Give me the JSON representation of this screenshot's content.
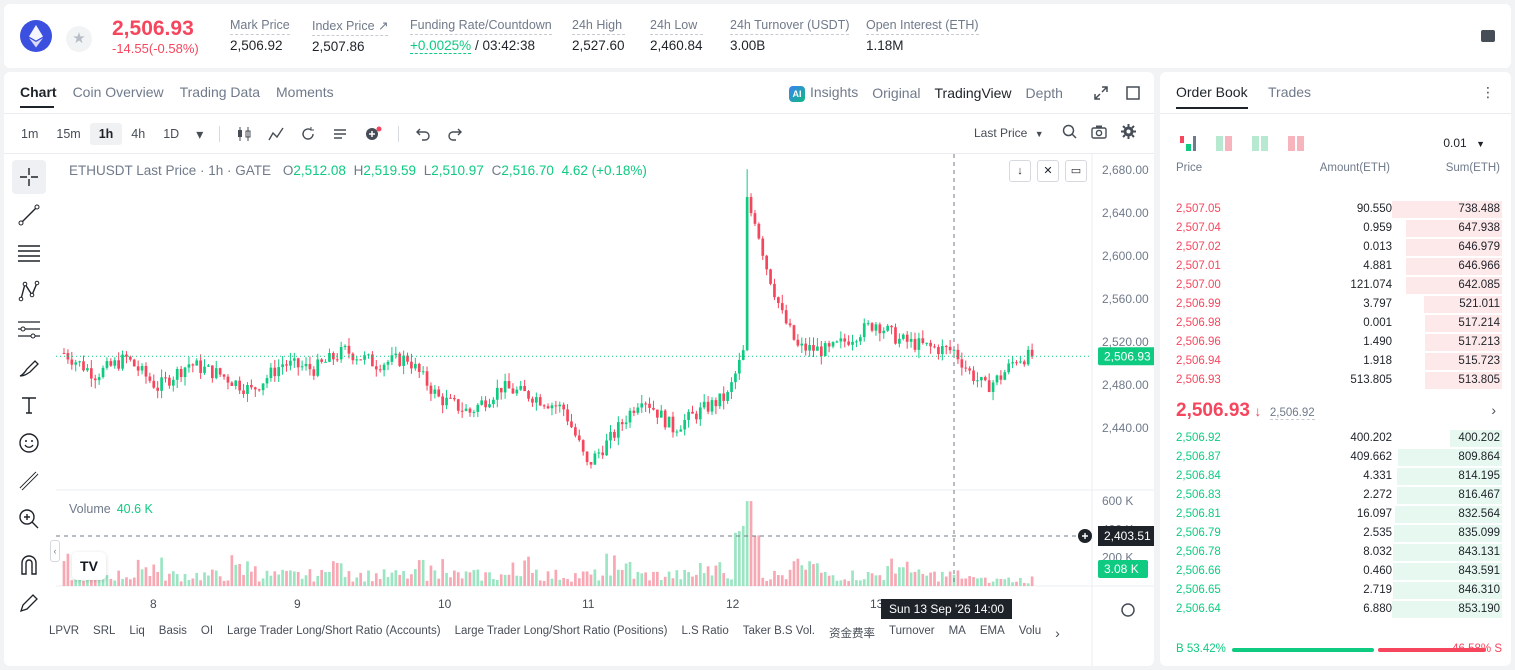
{
  "header": {
    "last_price": "2,506.93",
    "change": "-14.55(-0.58%)",
    "stats": [
      {
        "label": "Mark Price",
        "value": "2,506.92"
      },
      {
        "label": "Index Price ↗",
        "value": "2,507.86"
      },
      {
        "label": "Funding Rate/Countdown",
        "value": "+0.0025%",
        "value2": " / 03:42:38"
      },
      {
        "label": "24h High",
        "value": "2,527.60"
      },
      {
        "label": "24h Low",
        "value": "2,460.84"
      },
      {
        "label": "24h Turnover (USDT)",
        "value": "3.00B"
      },
      {
        "label": "Open Interest (ETH)",
        "value": "1.18M"
      }
    ]
  },
  "chart_tabs": [
    "Chart",
    "Coin Overview",
    "Trading Data",
    "Moments"
  ],
  "view_tabs": {
    "insights": "Insights",
    "original": "Original",
    "tradingview": "TradingView",
    "depth": "Depth"
  },
  "timeframes": [
    "1m",
    "15m",
    "1h",
    "4h",
    "1D"
  ],
  "active_timeframe": "1h",
  "price_type": "Last Price",
  "legend": {
    "symbol": "ETHUSDT Last Price · 1h · GATE",
    "o_label": "O",
    "o": "2,512.08",
    "h_label": "H",
    "h": "2,519.59",
    "l_label": "L",
    "l": "2,510.97",
    "c_label": "C",
    "c": "2,516.70",
    "chg": "4.62 (+0.18%)"
  },
  "volume_legend": {
    "label": "Volume",
    "value": "40.6 K"
  },
  "crosshair": {
    "price": "2,403.51",
    "time": "Sun 13 Sep '26   14:00"
  },
  "chart_data": {
    "type": "candlestick",
    "symbol": "ETHUSDT",
    "interval": "1h",
    "price_axis": [
      "2,680.00",
      "2,640.00",
      "2,600.00",
      "2,560.00",
      "2,520.00",
      "2,480.00",
      "2,440.00"
    ],
    "price_axis_values": [
      2680,
      2640,
      2600,
      2560,
      2520,
      2480,
      2440
    ],
    "ylim": [
      2390,
      2695
    ],
    "x_ticks": [
      "8",
      "9",
      "10",
      "11",
      "12",
      "13"
    ],
    "volume_axis": [
      "600 K",
      "400 K",
      "200 K"
    ],
    "volume_axis_values": [
      600000,
      400000,
      200000
    ],
    "last_price_label": "2,506.93",
    "last_price_value": 2506.93,
    "last_volume_label": "3.08 K",
    "anchors": [
      [
        0,
        2510
      ],
      [
        8,
        2490
      ],
      [
        16,
        2505
      ],
      [
        24,
        2478
      ],
      [
        32,
        2500
      ],
      [
        40,
        2490
      ],
      [
        48,
        2475
      ],
      [
        56,
        2500
      ],
      [
        64,
        2495
      ],
      [
        72,
        2512
      ],
      [
        80,
        2500
      ],
      [
        88,
        2505
      ],
      [
        96,
        2468
      ],
      [
        104,
        2455
      ],
      [
        112,
        2478
      ],
      [
        120,
        2470
      ],
      [
        128,
        2458
      ],
      [
        132,
        2425
      ],
      [
        134,
        2405
      ],
      [
        140,
        2430
      ],
      [
        148,
        2470
      ],
      [
        156,
        2440
      ],
      [
        164,
        2458
      ],
      [
        170,
        2470
      ],
      [
        174,
        2510
      ],
      [
        176,
        2650
      ],
      [
        180,
        2590
      ],
      [
        184,
        2545
      ],
      [
        188,
        2515
      ],
      [
        196,
        2512
      ],
      [
        204,
        2530
      ],
      [
        208,
        2538
      ],
      [
        214,
        2522
      ],
      [
        222,
        2515
      ],
      [
        228,
        2512
      ],
      [
        232,
        2492
      ],
      [
        236,
        2478
      ],
      [
        240,
        2488
      ],
      [
        244,
        2505
      ],
      [
        248,
        2507
      ]
    ],
    "volume_notes": "Volume bars in thousands; spike near day 12 open reached ~600 K"
  },
  "indicators": [
    "LPVR",
    "SRL",
    "Liq",
    "Basis",
    "OI",
    "Large Trader Long/Short Ratio (Accounts)",
    "Large Trader Long/Short Ratio (Positions)",
    "L.S Ratio",
    "Taker B.S Vol.",
    "资金费率",
    "Turnover",
    "MA",
    "EMA",
    "Volu"
  ],
  "orderbook": {
    "tabs": [
      "Order Book",
      "Trades"
    ],
    "precision": "0.01",
    "headers": {
      "price": "Price",
      "amount": "Amount(ETH)",
      "sum": "Sum(ETH)"
    },
    "asks": [
      {
        "price": "2,507.05",
        "amount": "90.550",
        "sum": "738.488",
        "depth": 1.0
      },
      {
        "price": "2,507.04",
        "amount": "0.959",
        "sum": "647.938",
        "depth": 0.877
      },
      {
        "price": "2,507.02",
        "amount": "0.013",
        "sum": "646.979",
        "depth": 0.876
      },
      {
        "price": "2,507.01",
        "amount": "4.881",
        "sum": "646.966",
        "depth": 0.876
      },
      {
        "price": "2,507.00",
        "amount": "121.074",
        "sum": "642.085",
        "depth": 0.869
      },
      {
        "price": "2,506.99",
        "amount": "3.797",
        "sum": "521.011",
        "depth": 0.706
      },
      {
        "price": "2,506.98",
        "amount": "0.001",
        "sum": "517.214",
        "depth": 0.7
      },
      {
        "price": "2,506.96",
        "amount": "1.490",
        "sum": "517.213",
        "depth": 0.7
      },
      {
        "price": "2,506.94",
        "amount": "1.918",
        "sum": "515.723",
        "depth": 0.698
      },
      {
        "price": "2,506.93",
        "amount": "513.805",
        "sum": "513.805",
        "depth": 0.696
      }
    ],
    "mid": {
      "price": "2,506.93",
      "arrow": "↓",
      "mark": "2,506.92"
    },
    "bids": [
      {
        "price": "2,506.92",
        "amount": "400.202",
        "sum": "400.202",
        "depth": 0.469
      },
      {
        "price": "2,506.87",
        "amount": "409.662",
        "sum": "809.864",
        "depth": 0.949
      },
      {
        "price": "2,506.84",
        "amount": "4.331",
        "sum": "814.195",
        "depth": 0.954
      },
      {
        "price": "2,506.83",
        "amount": "2.272",
        "sum": "816.467",
        "depth": 0.957
      },
      {
        "price": "2,506.81",
        "amount": "16.097",
        "sum": "832.564",
        "depth": 0.976
      },
      {
        "price": "2,506.79",
        "amount": "2.535",
        "sum": "835.099",
        "depth": 0.979
      },
      {
        "price": "2,506.78",
        "amount": "8.032",
        "sum": "843.131",
        "depth": 0.988
      },
      {
        "price": "2,506.66",
        "amount": "0.460",
        "sum": "843.591",
        "depth": 0.989
      },
      {
        "price": "2,506.65",
        "amount": "2.719",
        "sum": "846.310",
        "depth": 0.992
      },
      {
        "price": "2,506.64",
        "amount": "6.880",
        "sum": "853.190",
        "depth": 1.0
      }
    ],
    "buy_ratio": "53.42%",
    "sell_ratio": "46.58%",
    "buy_ratio_value": 0.5342,
    "b_label": "B",
    "s_label": "S"
  },
  "colors": {
    "up": "#0ecb81",
    "down": "#f6465d",
    "text": "#1e2329",
    "muted": "#707a8a"
  }
}
